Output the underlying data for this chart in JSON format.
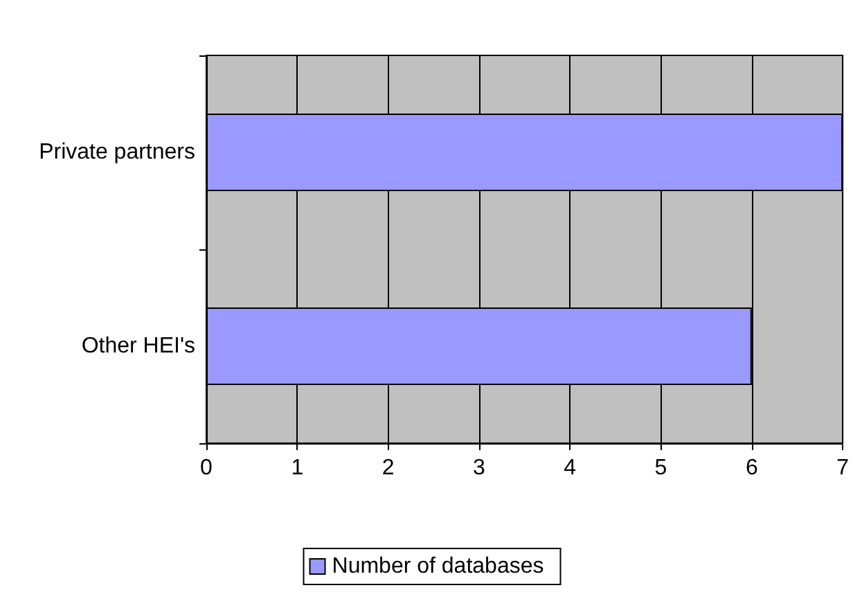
{
  "chart_data": {
    "type": "bar",
    "orientation": "horizontal",
    "categories": [
      "Private partners",
      "Other HEI's"
    ],
    "series": [
      {
        "name": "Number of databases",
        "color": "#9999ff",
        "values": [
          7,
          6
        ]
      }
    ],
    "xlim": [
      0,
      7
    ],
    "xticks": [
      0,
      1,
      2,
      3,
      4,
      5,
      6,
      7
    ],
    "grid": "x",
    "legend": "bottom"
  }
}
